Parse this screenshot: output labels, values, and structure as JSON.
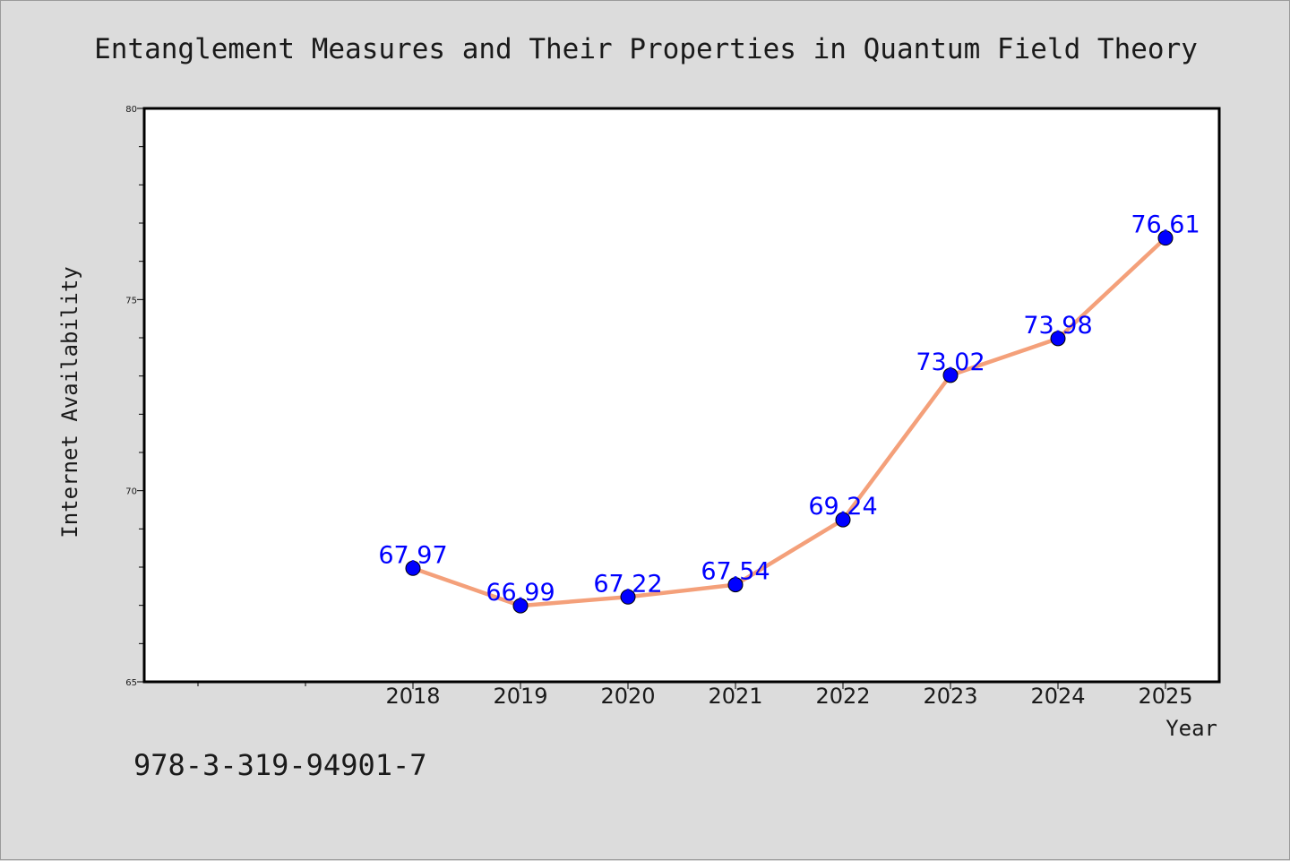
{
  "chart_data": {
    "type": "line",
    "title": "Entanglement Measures and Their Properties in Quantum Field Theory",
    "xlabel": "Year",
    "ylabel": "Internet Availability",
    "x": [
      "2018",
      "2019",
      "2020",
      "2021",
      "2022",
      "2023",
      "2024",
      "2025"
    ],
    "series": [
      {
        "values": [
          67.97,
          66.99,
          67.22,
          67.54,
          69.24,
          73.02,
          73.98,
          76.61
        ]
      }
    ],
    "data_labels": [
      "67.97",
      "66.99",
      "67.22",
      "67.54",
      "69.24",
      "73.02",
      "73.98",
      "76.61"
    ],
    "ylim": [
      65,
      80
    ],
    "y_ticks": [
      "65",
      "70",
      "75",
      "80"
    ],
    "grid": false,
    "legend": "none",
    "colors": {
      "line": "#f4a07a",
      "marker": "#0000ff",
      "label": "#0000ff",
      "background": "#dcdcdc",
      "plot": "#ffffff"
    }
  },
  "footnote": "978-3-319-94901-7"
}
